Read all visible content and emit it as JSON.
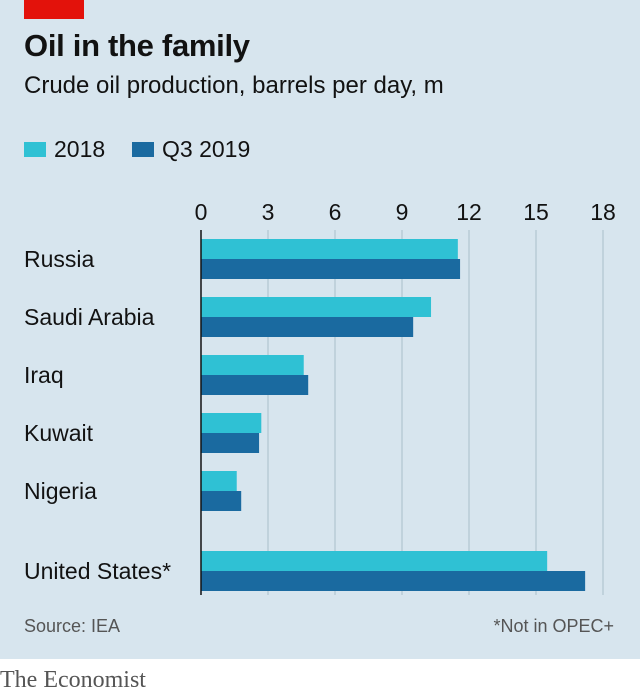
{
  "title": "Oil in the family",
  "subtitle": "Crude oil production, barrels per day, m",
  "legend": [
    {
      "label": "2018",
      "color": "#2fc1d4"
    },
    {
      "label": "Q3 2019",
      "color": "#1a6aa0"
    }
  ],
  "source": "Source: IEA",
  "footnote": "*Not in OPEC+",
  "brand": "The Economist",
  "colors": {
    "background": "#d7e5ee",
    "accent": "#e3120b",
    "gridline": "#b9cbd6",
    "axis": "#121212"
  },
  "chart_data": {
    "type": "bar",
    "orientation": "horizontal",
    "categories": [
      "Russia",
      "Saudi Arabia",
      "Iraq",
      "Kuwait",
      "Nigeria",
      "United States*"
    ],
    "series": [
      {
        "name": "2018",
        "values": [
          11.5,
          10.3,
          4.6,
          2.7,
          1.6,
          15.5
        ]
      },
      {
        "name": "Q3 2019",
        "values": [
          11.6,
          9.5,
          4.8,
          2.6,
          1.8,
          17.2
        ]
      }
    ],
    "xlim": [
      0,
      18
    ],
    "xticks": [
      0,
      3,
      6,
      9,
      12,
      15,
      18
    ],
    "grid": true,
    "legend_position": "top-left"
  }
}
